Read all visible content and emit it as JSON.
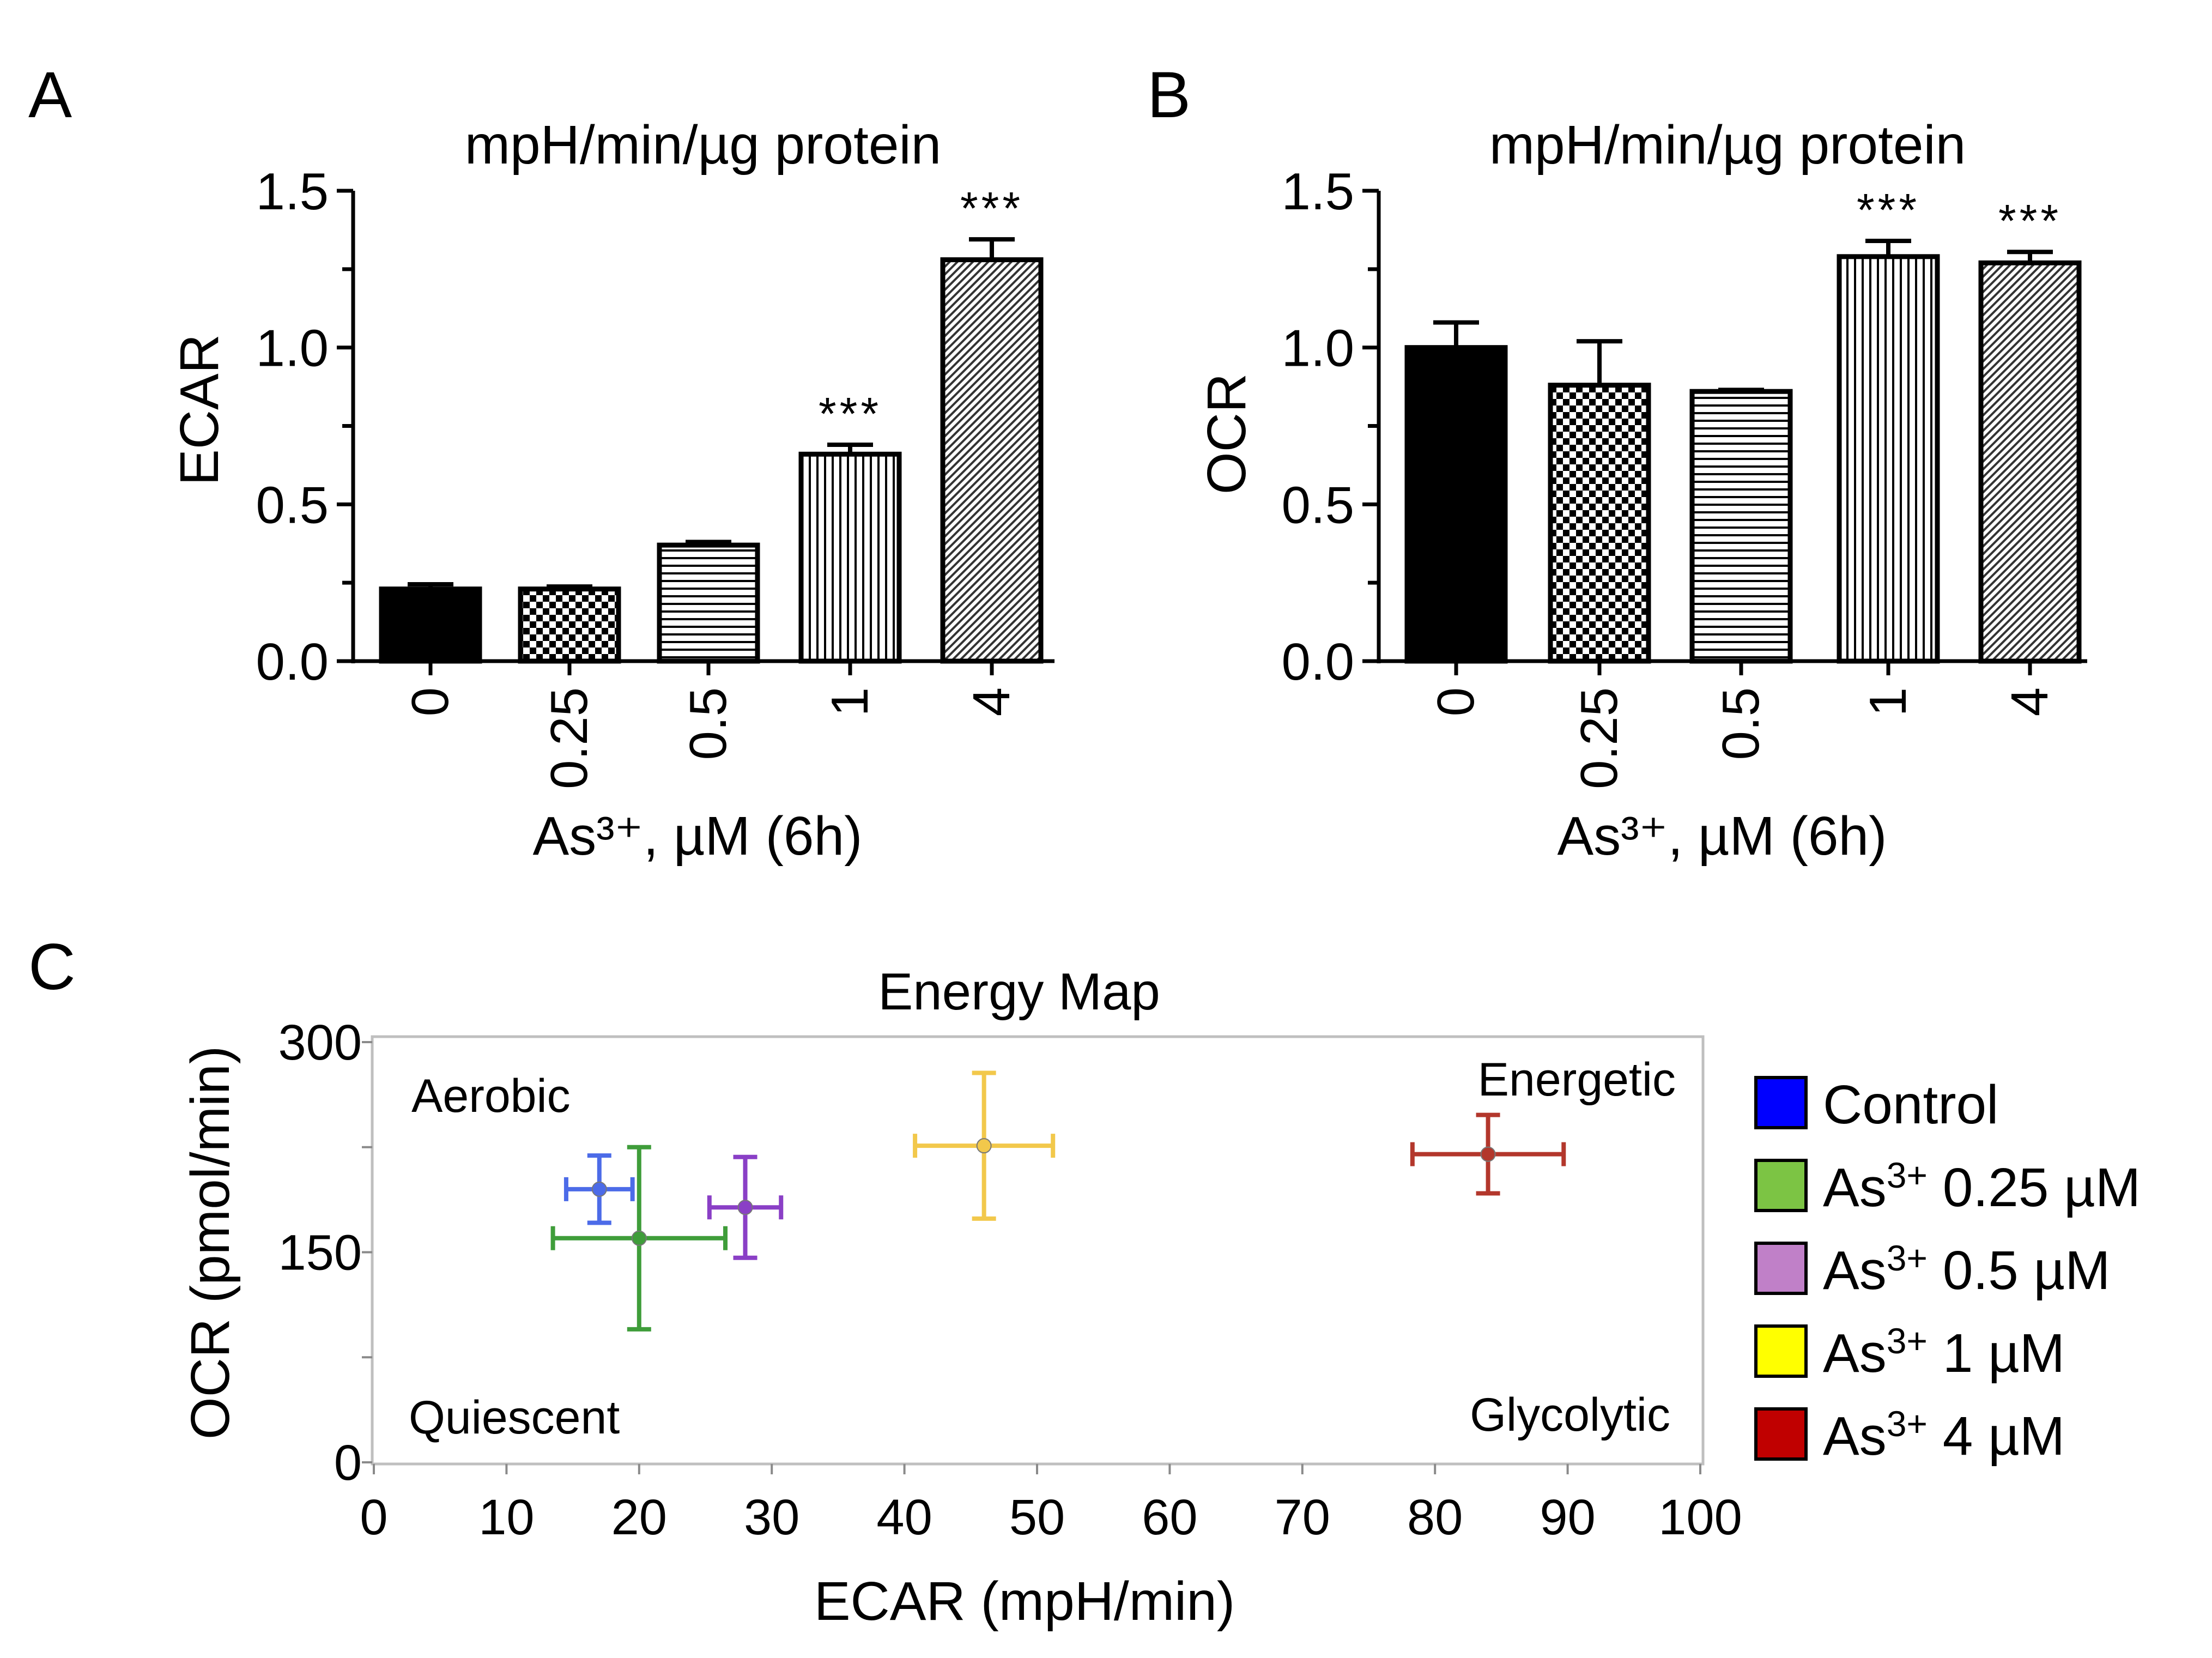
{
  "figure": {
    "panel_labels": [
      "A",
      "B",
      "C"
    ]
  },
  "chart_data": [
    {
      "type": "bar",
      "panel": "A",
      "title": "mpH/min/µg protein",
      "ylabel": "ECAR",
      "xlabel": "As³⁺, µM (6h)",
      "categories": [
        "0",
        "0.25",
        "0.5",
        "1",
        "4"
      ],
      "values": [
        0.23,
        0.23,
        0.37,
        0.66,
        1.28
      ],
      "errors": [
        0.015,
        0.008,
        0.01,
        0.03,
        0.065
      ],
      "significance": [
        "",
        "",
        "",
        "***",
        "***"
      ],
      "patterns": [
        "solid",
        "checker",
        "hlines",
        "vlines",
        "diag"
      ],
      "ylim": [
        0,
        1.5
      ],
      "yticks": [
        "0.0",
        "0.5",
        "1.0",
        "1.5"
      ]
    },
    {
      "type": "bar",
      "panel": "B",
      "title": "mpH/min/µg protein",
      "ylabel": "OCR",
      "xlabel": "As³⁺, µM (6h)",
      "categories": [
        "0",
        "0.25",
        "0.5",
        "1",
        "4"
      ],
      "values": [
        1.0,
        0.88,
        0.86,
        1.29,
        1.27
      ],
      "errors": [
        0.08,
        0.14,
        0.005,
        0.05,
        0.035
      ],
      "significance": [
        "",
        "",
        "",
        "***",
        "***"
      ],
      "patterns": [
        "solid",
        "checker",
        "hlines",
        "vlines",
        "diag"
      ],
      "ylim": [
        0,
        1.5
      ],
      "yticks": [
        "0.0",
        "0.5",
        "1.0",
        "1.5"
      ]
    },
    {
      "type": "scatter",
      "panel": "C",
      "title": "Energy Map",
      "xlabel": "ECAR (mpH/min)",
      "ylabel": "OCR (pmol/min)",
      "xlim": [
        0,
        100
      ],
      "ylim": [
        0,
        300
      ],
      "xticks": [
        "0",
        "10",
        "20",
        "30",
        "40",
        "50",
        "60",
        "70",
        "80",
        "90",
        "100"
      ],
      "yticks": [
        "0",
        "150",
        "300"
      ],
      "quadrant_labels": {
        "top_left": "Aerobic",
        "top_right": "Energetic",
        "bottom_left": "Quiescent",
        "bottom_right": "Glycolytic"
      },
      "series": [
        {
          "name": "Control",
          "legend_prefix": "",
          "legend_sup": "",
          "legend_suffix": "Control",
          "color": "#0000ff",
          "point_color": "#4c6be8",
          "x": 17,
          "y": 195,
          "xerr": 2.5,
          "yerr": 24
        },
        {
          "name": "As³⁺ 0.25 µM",
          "legend_prefix": "As",
          "legend_sup": "3+",
          "legend_suffix": " 0.25 µM",
          "color": "#7cc444",
          "point_color": "#3f9d3a",
          "x": 20,
          "y": 160,
          "xerr": 6.5,
          "yerr": 65
        },
        {
          "name": "As³⁺ 0.5 µM",
          "legend_prefix": "As",
          "legend_sup": "3+",
          "legend_suffix": " 0.5 µM",
          "color": "#c080c8",
          "point_color": "#8a3fc6",
          "x": 28,
          "y": 182,
          "xerr": 2.7,
          "yerr": 36
        },
        {
          "name": "As³⁺ 1 µM",
          "legend_prefix": "As",
          "legend_sup": "3+",
          "legend_suffix": " 1 µM",
          "color": "#ffff00",
          "point_color": "#f2c84b",
          "x": 46,
          "y": 226,
          "xerr": 5.2,
          "yerr": 52
        },
        {
          "name": "As³⁺ 4 µM",
          "legend_prefix": "As",
          "legend_sup": "3+",
          "legend_suffix": " 4 µM",
          "color": "#c00000",
          "point_color": "#b3372c",
          "x": 84,
          "y": 220,
          "xerr": 5.7,
          "yerr": 28
        }
      ]
    }
  ]
}
